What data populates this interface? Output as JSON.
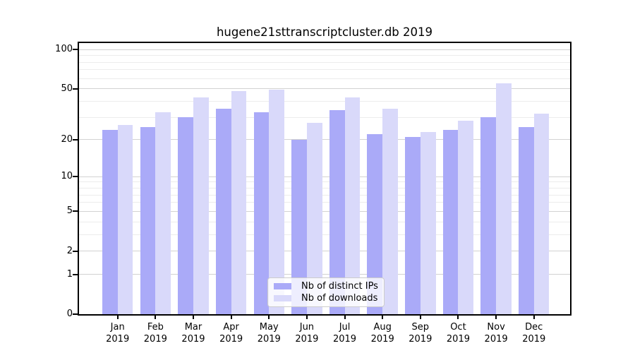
{
  "chart_data": {
    "type": "bar",
    "title": "hugene21sttranscriptcluster.db 2019",
    "categories": [
      "Jan",
      "Feb",
      "Mar",
      "Apr",
      "May",
      "Jun",
      "Jul",
      "Aug",
      "Sep",
      "Oct",
      "Nov",
      "Dec"
    ],
    "category_year_label": "2019",
    "series": [
      {
        "name": "Nb of distinct IPs",
        "color": "#aaaaf8",
        "values": [
          24,
          25,
          30,
          35,
          33,
          20,
          34,
          22,
          21,
          24,
          30,
          25
        ]
      },
      {
        "name": "Nb of downloads",
        "color": "#d9d9fa",
        "values": [
          26,
          33,
          43,
          48,
          49,
          27,
          43,
          35,
          23,
          28,
          55,
          32
        ]
      }
    ],
    "xlabel": "",
    "ylabel": "",
    "yscale": "log1p",
    "ylim": [
      0,
      112
    ],
    "yticks": [
      0,
      1,
      2,
      5,
      10,
      20,
      50,
      100
    ],
    "yticks_minor": [
      3,
      4,
      6,
      7,
      8,
      9,
      30,
      40,
      60,
      70,
      80,
      90
    ],
    "grid": "on",
    "legend_position": "lower center",
    "colors": {
      "distinct_ips_bar": "#aaaaf8",
      "downloads_bar": "#d9d9fa",
      "grid_major": "#d2d2d2",
      "grid_minor": "#ececec",
      "spine": "#000000",
      "background": "#ffffff"
    }
  }
}
